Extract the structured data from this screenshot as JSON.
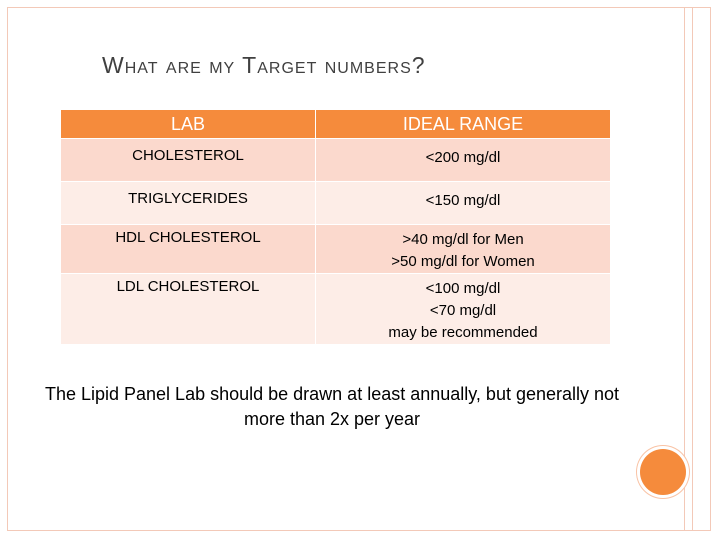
{
  "slide": {
    "title": "What are my Target numbers?",
    "table": {
      "headers": [
        "LAB",
        "IDEAL RANGE"
      ],
      "rows": [
        {
          "lab": "CHOLESTEROL",
          "range": [
            "<200 mg/dl"
          ]
        },
        {
          "lab": "TRIGLYCERIDES",
          "range": [
            "<150 mg/dl"
          ]
        },
        {
          "lab": "HDL CHOLESTEROL",
          "range": [
            ">40 mg/dl for Men",
            ">50 mg/dl for Women"
          ]
        },
        {
          "lab": "LDL CHOLESTEROL",
          "range": [
            "<100 mg/dl",
            "<70 mg/dl",
            "may be recommended"
          ]
        }
      ]
    },
    "note": "The Lipid Panel Lab should be drawn at least annually, but generally not more than 2x per year"
  },
  "colors": {
    "accent": "#f58b3c",
    "row_dark": "#fbd9cd",
    "row_light": "#fdede7",
    "border": "#f3c9b8"
  }
}
